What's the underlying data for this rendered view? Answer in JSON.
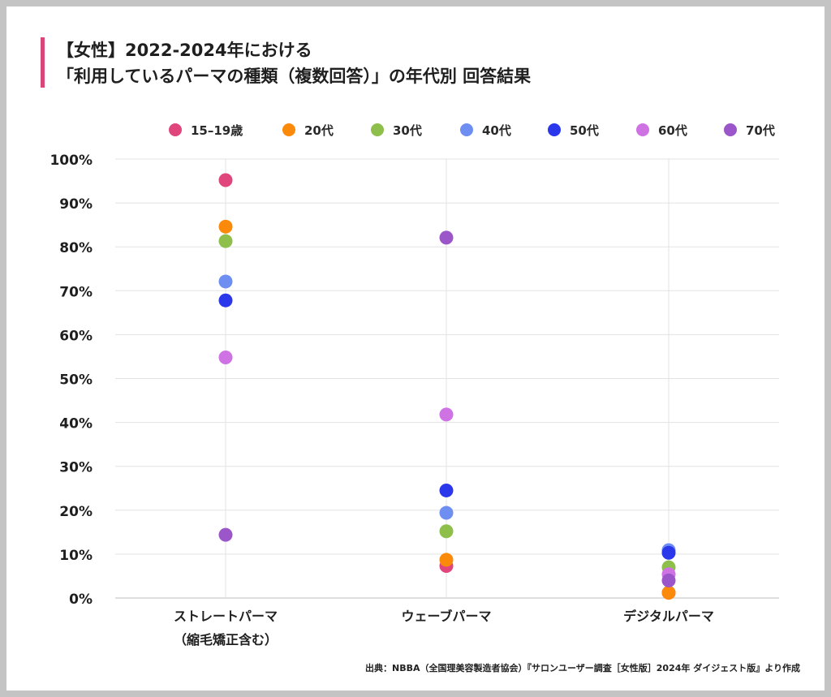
{
  "title": {
    "line1": "【女性】2022-2024年における",
    "line2": "「利用しているパーマの種類（複数回答）」の年代別 回答結果"
  },
  "source": "出典：NBBA（全国理美容製造者協会）『サロンユーザー調査［女性版］2024年 ダイジェスト版』より作成",
  "chart_data": {
    "type": "scatter",
    "title": "【女性】2022-2024年における「利用しているパーマの種類（複数回答）」の年代別 回答結果",
    "categories": [
      [
        "ストレートパーマ",
        "（縮毛矯正含む）"
      ],
      [
        "ウェーブパーマ"
      ],
      [
        "デジタルパーマ"
      ]
    ],
    "y_ticks": [
      "0%",
      "10%",
      "20%",
      "30%",
      "40%",
      "50%",
      "60%",
      "70%",
      "80%",
      "90%",
      "100%"
    ],
    "ylim": [
      0,
      100
    ],
    "grid": true,
    "legend_position": "top",
    "series": [
      {
        "name": "15–19歳",
        "color": "#e0457b",
        "values": [
          95.2,
          7.3,
          1.2
        ]
      },
      {
        "name": "20代",
        "color": "#fb8a0a",
        "values": [
          84.6,
          8.7,
          1.2
        ]
      },
      {
        "name": "30代",
        "color": "#8fbf4b",
        "values": [
          81.3,
          15.2,
          7.0
        ]
      },
      {
        "name": "40代",
        "color": "#6e8ff1",
        "values": [
          72.1,
          19.4,
          10.9
        ]
      },
      {
        "name": "50代",
        "color": "#2a37ea",
        "values": [
          67.8,
          24.5,
          10.3
        ]
      },
      {
        "name": "60代",
        "color": "#ce72e4",
        "values": [
          54.8,
          41.8,
          5.4
        ]
      },
      {
        "name": "70代",
        "color": "#9b57c9",
        "values": [
          14.4,
          82.1,
          4.0
        ]
      }
    ]
  }
}
